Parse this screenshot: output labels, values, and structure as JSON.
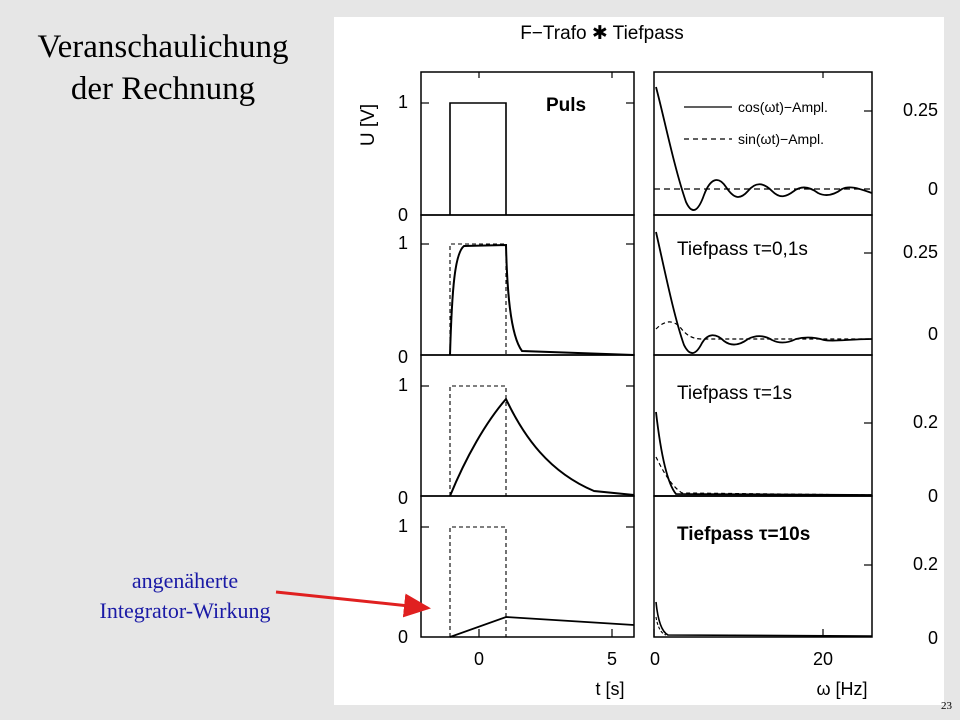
{
  "slide": {
    "title_line1": "Veranschaulichung",
    "title_line2": "der Rechnung",
    "annotation_line1": "angenäherte",
    "annotation_line2": "Integrator-Wirkung",
    "page_number": "23"
  },
  "figure": {
    "title": "F−Trafo ✱ Tiefpass",
    "left_ylabel": "U [V]",
    "left_xlabel": "t [s]",
    "right_xlabel": "ω [Hz]",
    "left_xticks": [
      "0",
      "5"
    ],
    "right_xticks": [
      "0",
      "20"
    ],
    "rows": [
      {
        "label": "Puls",
        "left_y_top": "1",
        "left_y_bottom": "0",
        "right_y_top": "0.25",
        "right_y_bottom": "0"
      },
      {
        "label": "Tiefpass τ=0,1s",
        "left_y_top": "1",
        "left_y_bottom": "0",
        "right_y_top": "0.25",
        "right_y_bottom": "0"
      },
      {
        "label": "Tiefpass τ=1s",
        "left_y_top": "1",
        "left_y_bottom": "0",
        "right_y_top": "0.2",
        "right_y_bottom": "0"
      },
      {
        "label": "Tiefpass τ=10s",
        "left_y_top": "1",
        "left_y_bottom": "0",
        "right_y_top": "0.2",
        "right_y_bottom": "0"
      }
    ],
    "legend": [
      {
        "label": "cos(ωt)−Ampl.",
        "style": "solid"
      },
      {
        "label": "sin(ωt)−Ampl.",
        "style": "dashed"
      }
    ]
  },
  "colors": {
    "background": "#e6e6e6",
    "figure_bg": "#ffffff",
    "annotation": "#1a1aa6",
    "arrow": "#e02020"
  }
}
